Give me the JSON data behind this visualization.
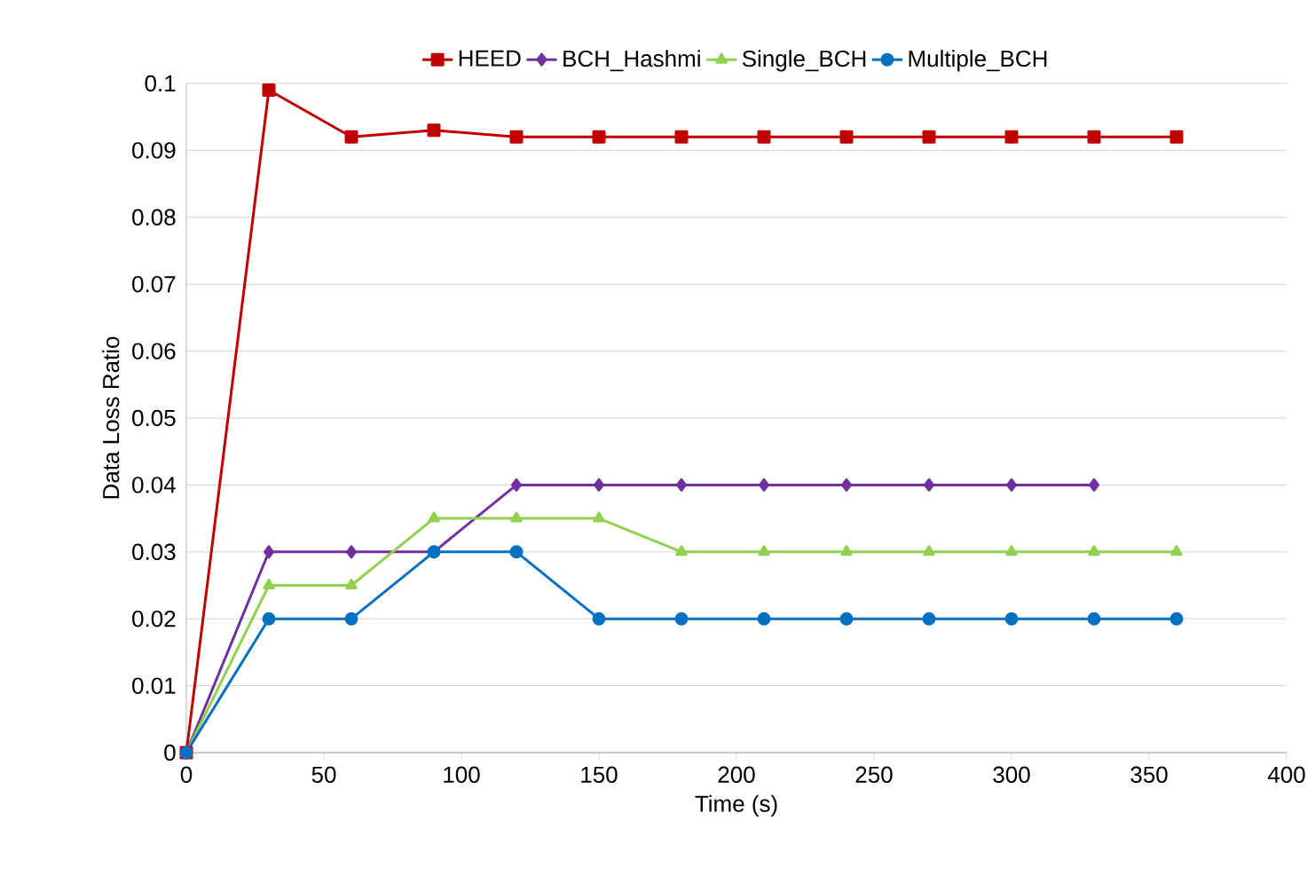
{
  "chart_data": {
    "type": "line",
    "xlabel": "Time (s)",
    "ylabel": "Data Loss Ratio",
    "xlim": [
      0,
      400
    ],
    "ylim": [
      0,
      0.1
    ],
    "xticks": [
      0,
      50,
      100,
      150,
      200,
      250,
      300,
      350,
      400
    ],
    "yticks": [
      0,
      0.01,
      0.02,
      0.03,
      0.04,
      0.05,
      0.06,
      0.07,
      0.08,
      0.09,
      0.1
    ],
    "grid": "y",
    "legend": "top",
    "line_style": "solid",
    "series": [
      {
        "name": "HEED",
        "color": "#c00000",
        "marker": "square",
        "x": [
          0,
          30,
          60,
          90,
          120,
          150,
          180,
          210,
          240,
          270,
          300,
          330,
          360
        ],
        "values": [
          0,
          0.099,
          0.092,
          0.093,
          0.092,
          0.092,
          0.092,
          0.092,
          0.092,
          0.092,
          0.092,
          0.092,
          0.092
        ]
      },
      {
        "name": "BCH_Hashmi",
        "color": "#7030a0",
        "marker": "diamond",
        "x": [
          0,
          30,
          60,
          90,
          120,
          150,
          180,
          210,
          240,
          270,
          300,
          330
        ],
        "values": [
          0,
          0.03,
          0.03,
          0.03,
          0.04,
          0.04,
          0.04,
          0.04,
          0.04,
          0.04,
          0.04,
          0.04
        ]
      },
      {
        "name": "Single_BCH",
        "color": "#92d050",
        "marker": "triangle",
        "x": [
          0,
          30,
          60,
          90,
          120,
          150,
          180,
          210,
          240,
          270,
          300,
          330,
          360
        ],
        "values": [
          0,
          0.025,
          0.025,
          0.035,
          0.035,
          0.035,
          0.03,
          0.03,
          0.03,
          0.03,
          0.03,
          0.03,
          0.03
        ]
      },
      {
        "name": "Multiple_BCH",
        "color": "#0070c0",
        "marker": "circle",
        "x": [
          0,
          30,
          60,
          90,
          120,
          150,
          180,
          210,
          240,
          270,
          300,
          330,
          360
        ],
        "values": [
          0,
          0.02,
          0.02,
          0.03,
          0.03,
          0.02,
          0.02,
          0.02,
          0.02,
          0.02,
          0.02,
          0.02,
          0.02
        ]
      }
    ]
  }
}
